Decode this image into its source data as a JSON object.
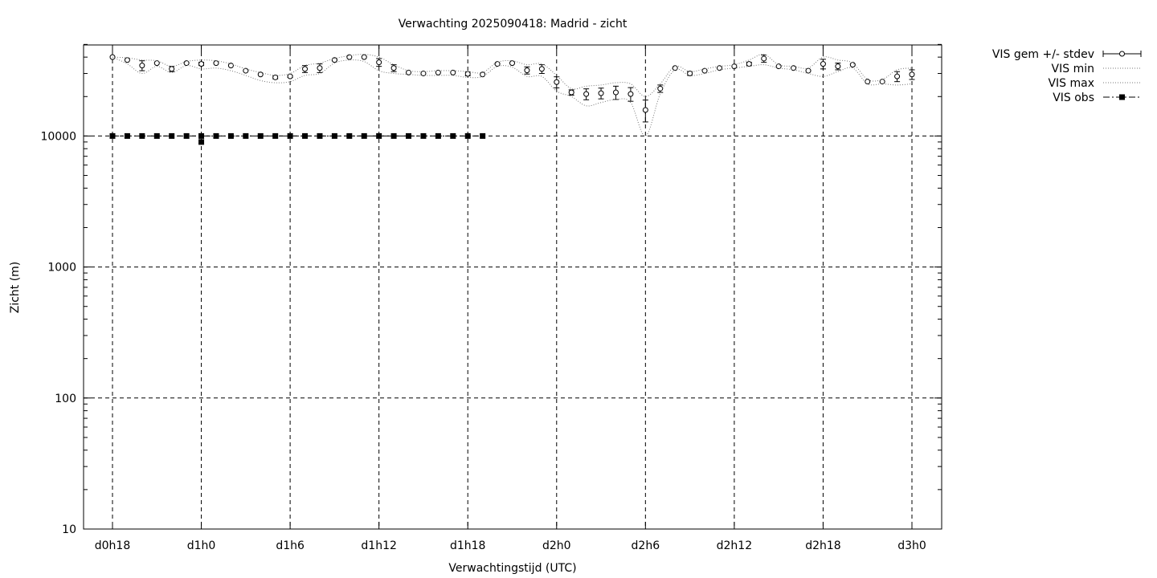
{
  "chart_data": {
    "type": "line",
    "title": "Verwachting 2025090418: Madrid - zicht",
    "xlabel": "Verwachtingstijd (UTC)",
    "ylabel": "Zicht (m)",
    "yscale": "log",
    "ylim": [
      10,
      50000
    ],
    "xlim": [
      -2,
      56
    ],
    "grid": true,
    "legend_position": "outside-top-right",
    "x_ticks": [
      {
        "x": 0,
        "label": "d0h18"
      },
      {
        "x": 6,
        "label": "d1h0"
      },
      {
        "x": 12,
        "label": "d1h6"
      },
      {
        "x": 18,
        "label": "d1h12"
      },
      {
        "x": 24,
        "label": "d1h18"
      },
      {
        "x": 30,
        "label": "d2h0"
      },
      {
        "x": 36,
        "label": "d2h6"
      },
      {
        "x": 42,
        "label": "d2h12"
      },
      {
        "x": 48,
        "label": "d2h18"
      },
      {
        "x": 54,
        "label": "d3h0"
      }
    ],
    "y_ticks": [
      {
        "y": 10,
        "label": "10"
      },
      {
        "y": 100,
        "label": "100"
      },
      {
        "y": 1000,
        "label": "1000"
      },
      {
        "y": 10000,
        "label": "10000"
      }
    ],
    "series": [
      {
        "name": "VIS gem +/- stdev",
        "style": "points-errorbars",
        "x": [
          0,
          1,
          2,
          3,
          4,
          5,
          6,
          7,
          8,
          9,
          10,
          11,
          12,
          13,
          14,
          15,
          16,
          17,
          18,
          19,
          20,
          21,
          22,
          23,
          24,
          25,
          26,
          27,
          28,
          29,
          30,
          31,
          32,
          33,
          34,
          35,
          36,
          37,
          38,
          39,
          40,
          41,
          42,
          43,
          44,
          45,
          46,
          47,
          48,
          49,
          50,
          51,
          52,
          53,
          54
        ],
        "y": [
          40000,
          38000,
          34500,
          36000,
          32500,
          36000,
          35500,
          36000,
          34500,
          31500,
          29500,
          28000,
          28500,
          32500,
          33000,
          38000,
          40000,
          40000,
          36500,
          33000,
          30500,
          30000,
          30500,
          30500,
          29800,
          29500,
          35500,
          36000,
          31700,
          32500,
          25800,
          21500,
          20900,
          21200,
          21500,
          20900,
          15800,
          23000,
          33000,
          30000,
          31500,
          33000,
          34000,
          35500,
          39000,
          34000,
          33000,
          31500,
          35500,
          34000,
          35000,
          26000,
          26000,
          28500,
          29500
        ],
        "err": [
          0,
          0,
          3000,
          0,
          1500,
          0,
          1000,
          0,
          0,
          0,
          0,
          700,
          500,
          2000,
          2500,
          500,
          0,
          0,
          2500,
          2000,
          0,
          0,
          0,
          0,
          1000,
          0,
          0,
          0,
          2000,
          2500,
          2500,
          1000,
          2000,
          2000,
          2500,
          2500,
          3000,
          1500,
          0,
          1000,
          0,
          0,
          0,
          1000,
          2500,
          0,
          0,
          0,
          3000,
          2000,
          0,
          0,
          0,
          2500,
          2500
        ]
      },
      {
        "name": "VIS min",
        "style": "dotted",
        "x": [
          0,
          1,
          2,
          3,
          4,
          5,
          6,
          7,
          8,
          9,
          10,
          11,
          12,
          13,
          14,
          15,
          16,
          17,
          18,
          19,
          20,
          21,
          22,
          23,
          24,
          25,
          26,
          27,
          28,
          29,
          30,
          31,
          32,
          33,
          34,
          35,
          36,
          37,
          38,
          39,
          40,
          41,
          42,
          43,
          44,
          45,
          46,
          47,
          48,
          49,
          50,
          51,
          52,
          53,
          54
        ],
        "y": [
          40000,
          35500,
          30000,
          34000,
          30500,
          34500,
          32500,
          33000,
          31500,
          29000,
          26500,
          25500,
          26000,
          29000,
          30000,
          36000,
          38000,
          37000,
          31500,
          30000,
          29500,
          29000,
          29000,
          29000,
          28000,
          28500,
          34000,
          33500,
          28500,
          28500,
          22000,
          20000,
          17000,
          18000,
          19000,
          18000,
          10000,
          21000,
          32000,
          29000,
          30000,
          32000,
          33000,
          34000,
          35000,
          33000,
          32000,
          30000,
          28500,
          31000,
          33000,
          25000,
          25000,
          24500,
          25000
        ]
      },
      {
        "name": "VIS max",
        "style": "dotted",
        "x": [
          0,
          1,
          2,
          3,
          4,
          5,
          6,
          7,
          8,
          9,
          10,
          11,
          12,
          13,
          14,
          15,
          16,
          17,
          18,
          19,
          20,
          21,
          22,
          23,
          24,
          25,
          26,
          27,
          28,
          29,
          30,
          31,
          32,
          33,
          34,
          35,
          36,
          37,
          38,
          39,
          40,
          41,
          42,
          43,
          44,
          45,
          46,
          47,
          48,
          49,
          50,
          51,
          52,
          53,
          54
        ],
        "y": [
          40000,
          39500,
          38000,
          37500,
          34000,
          37000,
          38000,
          37500,
          35500,
          32500,
          30500,
          29000,
          30000,
          34500,
          36000,
          39000,
          41000,
          42000,
          40000,
          35000,
          31500,
          31000,
          31500,
          31500,
          31000,
          30500,
          36500,
          37500,
          35000,
          35500,
          29000,
          23000,
          24000,
          24500,
          25500,
          25000,
          20000,
          25000,
          34000,
          31000,
          32500,
          34000,
          35000,
          38000,
          42000,
          35000,
          34000,
          33000,
          40000,
          38000,
          36000,
          27000,
          27000,
          32000,
          33000
        ]
      },
      {
        "name": "VIS obs",
        "style": "points-line-dashdot",
        "x": [
          0,
          1,
          2,
          3,
          4,
          5,
          6,
          7,
          8,
          9,
          10,
          11,
          12,
          13,
          14,
          15,
          16,
          17,
          18,
          19,
          20,
          21,
          22,
          23,
          24,
          25
        ],
        "y": [
          10000,
          10000,
          10000,
          10000,
          10000,
          10000,
          10000,
          10000,
          10000,
          10000,
          10000,
          10000,
          10000,
          10000,
          10000,
          10000,
          10000,
          10000,
          10000,
          10000,
          10000,
          10000,
          10000,
          10000,
          10000,
          10000
        ],
        "extra_points": [
          {
            "x": 6,
            "y": 9000
          }
        ]
      }
    ]
  }
}
